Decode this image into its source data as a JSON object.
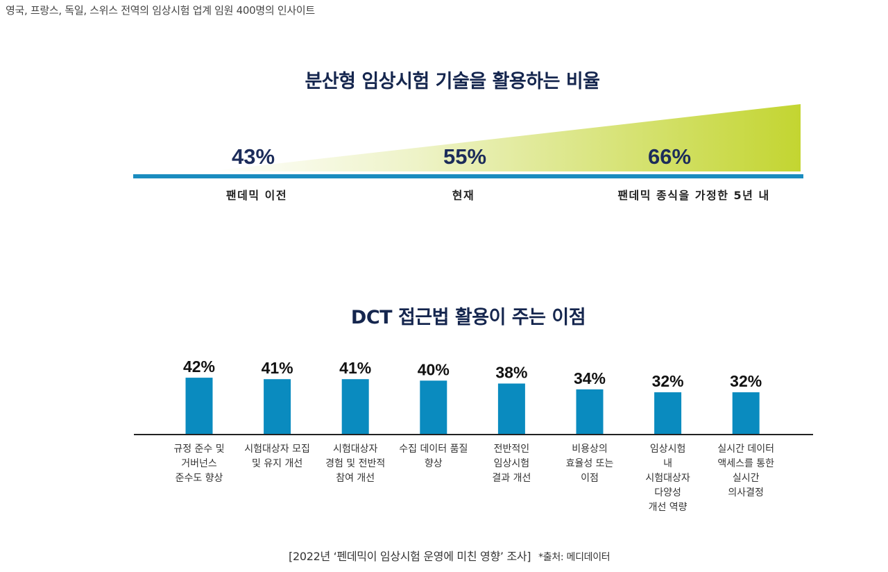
{
  "caption": "영국, 프랑스, 독일, 스위스 전역의 임상시험 업계 임원 400명의 인사이트",
  "footer": {
    "survey": "[2022년 ‘펜데믹이 임상시험 운영에 미친 영향’ 조사]",
    "source": "*출처: 메디데이터"
  },
  "colors": {
    "title": "#15264e",
    "bar": "#0a8bbf",
    "timeline": "#1a8cbf",
    "wedge_end": "#c3d531"
  },
  "chart_data": [
    {
      "type": "area",
      "title": "분산형 임상시험 기술을 활용하는 비율",
      "categories": [
        "팬데믹 이전",
        "현재",
        "팬데믹 종식을 가정한 5년 내"
      ],
      "values": [
        43,
        55,
        66
      ],
      "labels": [
        "43%",
        "55%",
        "66%"
      ],
      "unit": "%"
    },
    {
      "type": "bar",
      "title": "DCT 접근법 활용이 주는 이점",
      "categories": [
        "규정 준수 및\n거버넌스\n준수도 향상",
        "시험대상자 모집\n및 유지 개선",
        "시험대상자\n경험 및 전반적\n참여 개선",
        "수집 데이터 품질\n향상",
        "전반적인\n임상시험\n결과 개선",
        "비용상의\n효율성 또는\n이점",
        "임상시험\n내\n시험대상자\n다양성\n개선 역량",
        "실시간 데이터\n액세스를 통한\n실시간\n의사결정"
      ],
      "values": [
        42,
        41,
        41,
        40,
        38,
        34,
        32,
        32
      ],
      "labels": [
        "42%",
        "41%",
        "41%",
        "40%",
        "38%",
        "34%",
        "32%",
        "32%"
      ],
      "unit": "%",
      "ylim": [
        3,
        45
      ],
      "grid": false,
      "legend": "none"
    }
  ]
}
